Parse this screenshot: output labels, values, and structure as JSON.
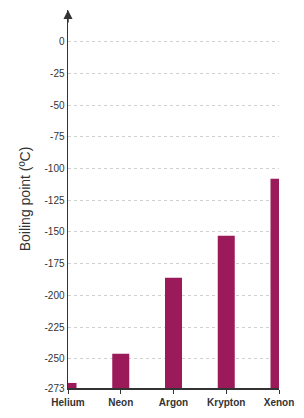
{
  "chart_data": {
    "type": "bar",
    "ylabel": "Boiling point (ºC)",
    "categories": [
      "Helium",
      "Neon",
      "Argon",
      "Krypton",
      "Xenon"
    ],
    "values": [
      -269,
      -246,
      -186,
      -153,
      -108
    ],
    "color": "#9b1b5a",
    "ylim": [
      -273,
      25
    ],
    "yticks": [
      0,
      -25,
      -50,
      -75,
      -100,
      -125,
      -150,
      -175,
      -200,
      -225,
      -250,
      -273
    ],
    "grid": true
  }
}
